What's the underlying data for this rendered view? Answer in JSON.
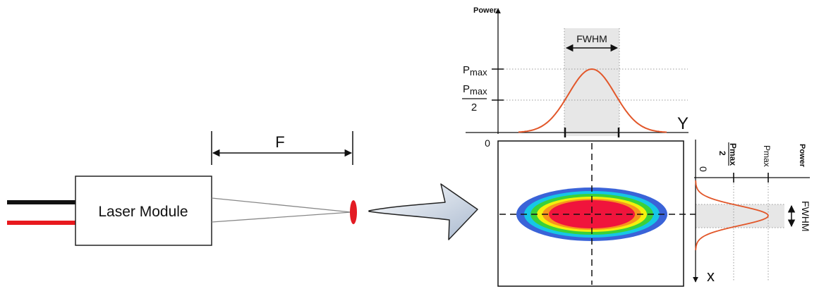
{
  "module": {
    "label": "Laser Module",
    "wire_colors": [
      "#111111",
      "#e8191e"
    ]
  },
  "focal_distance": {
    "label": "F"
  },
  "horizontal_profile": {
    "axis_label": "Power",
    "axis_end_label": "Y",
    "origin_label": "0",
    "level_max_label": "Pmax",
    "level_max_base": "P",
    "level_max_sub": "max",
    "level_half_label": "Pmax/2",
    "level_half_numerator_base": "P",
    "level_half_numerator_sub": "max",
    "level_half_denominator": "2",
    "width_label": "FWHM"
  },
  "vertical_profile": {
    "axis_label": "Power",
    "axis_end_label": "x",
    "origin_label": "0",
    "level_max_label": "Pmax",
    "level_half_numerator": "Pmax",
    "level_half_denominator": "2",
    "width_label": "FWHM"
  },
  "beam_spot": {
    "colors": [
      "#3a63d8",
      "#16c7e6",
      "#3ad13a",
      "#f4f00c",
      "#f7941d",
      "#f0143c"
    ]
  },
  "colors": {
    "beam_lines": "#888888",
    "spot": "#e31b23",
    "curve": "#e2572a",
    "band": "#e7e7e7",
    "arrow_fill_light": "#ffffff",
    "arrow_fill_dark": "#a9b9cf"
  }
}
